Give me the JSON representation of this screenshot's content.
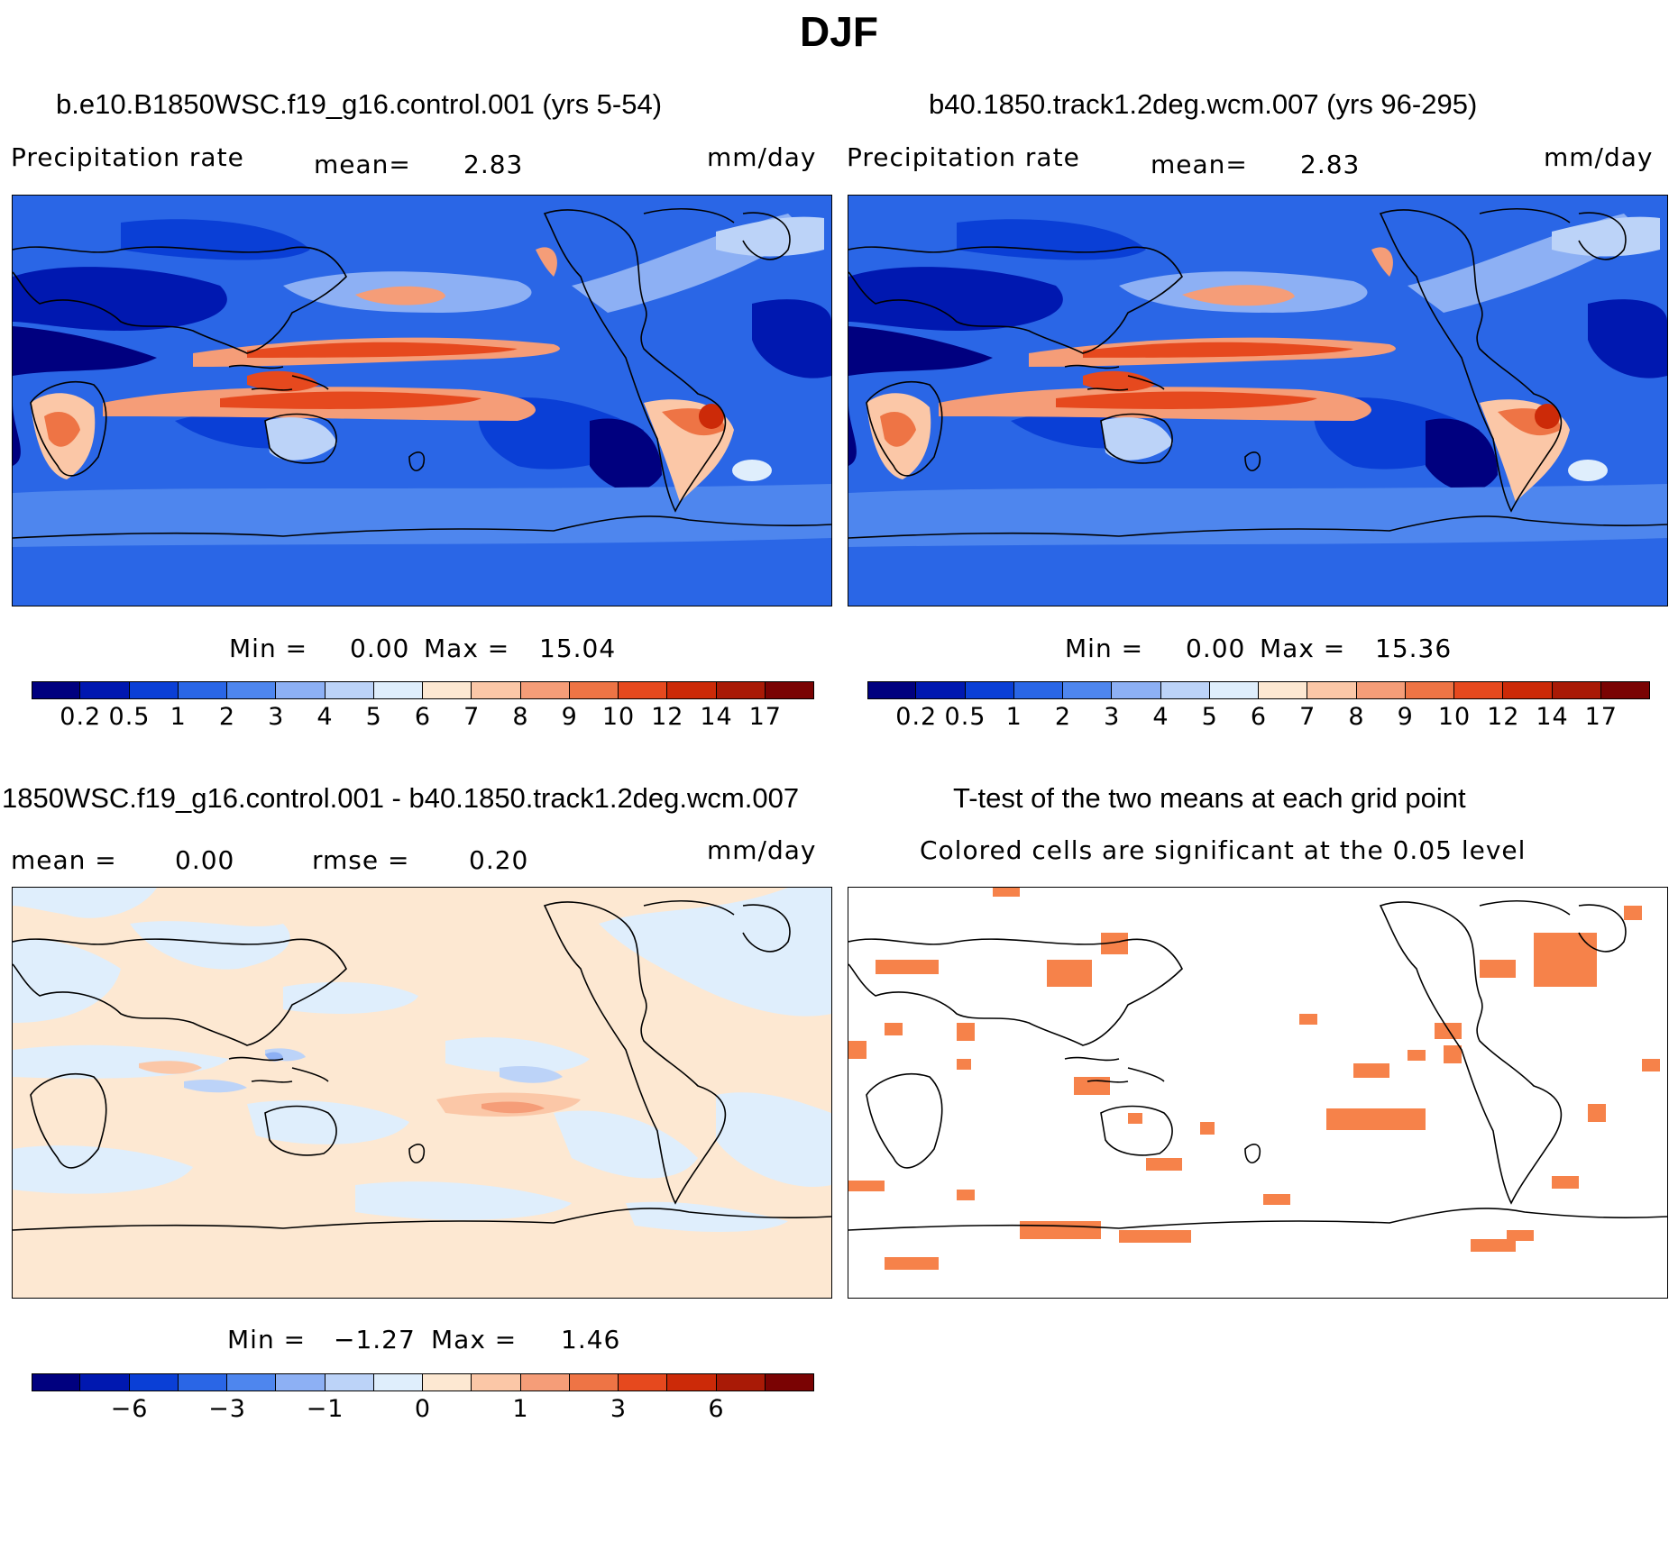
{
  "title": "DJF",
  "colors": {
    "precip": [
      "#00007f",
      "#0018b0",
      "#0a3fd6",
      "#2a66e6",
      "#4e86ee",
      "#8db0f4",
      "#bcd3f8",
      "#dfeefc",
      "#fde8d2",
      "#fbc7a7",
      "#f59d78",
      "#ee7445",
      "#e6491e",
      "#cc2a08",
      "#a91a06",
      "#7a0303"
    ],
    "diff": [
      "#00007f",
      "#0018b0",
      "#0a3fd6",
      "#2a66e6",
      "#4e86ee",
      "#8db0f4",
      "#bcd3f8",
      "#dfeefc",
      "#fde8d2",
      "#fbc7a7",
      "#f59d78",
      "#ee7445",
      "#e6491e",
      "#cc2a08",
      "#a91a06",
      "#7a0303"
    ],
    "land_line": "#000000",
    "sig": "#f6824a"
  },
  "panels": {
    "p1": {
      "title": "b.e10.B1850WSC.f19_g16.control.001 (yrs 5-54)",
      "left_label": "Precipitation  rate",
      "mean_label": "mean=",
      "mean_value": "2.83",
      "units": "mm/day",
      "min_label": "Min  =",
      "min_value": "0.00",
      "max_label": "Max  =",
      "max_value": "15.04",
      "colorbar_ticks": [
        "0.2",
        "0.5",
        "1",
        "2",
        "3",
        "4",
        "5",
        "6",
        "7",
        "8",
        "9",
        "10",
        "12",
        "14",
        "17"
      ]
    },
    "p2": {
      "title": "b40.1850.track1.2deg.wcm.007 (yrs 96-295)",
      "left_label": "Precipitation  rate",
      "mean_label": "mean=",
      "mean_value": "2.83",
      "units": "mm/day",
      "min_label": "Min  =",
      "min_value": "0.00",
      "max_label": "Max  =",
      "max_value": "15.36",
      "colorbar_ticks": [
        "0.2",
        "0.5",
        "1",
        "2",
        "3",
        "4",
        "5",
        "6",
        "7",
        "8",
        "9",
        "10",
        "12",
        "14",
        "17"
      ]
    },
    "p3": {
      "title": "1850WSC.f19_g16.control.001 - b40.1850.track1.2deg.wcm.007",
      "mean_label": "mean  =",
      "mean_value": "0.00",
      "rmse_label": "rmse  =",
      "rmse_value": "0.20",
      "units": "mm/day",
      "min_label": "Min  =",
      "min_value": "−1.27",
      "max_label": "Max  =",
      "max_value": "1.46",
      "colorbar_ticks": [
        "−6",
        "−3",
        "−1",
        "0",
        "1",
        "3",
        "6"
      ]
    },
    "p4": {
      "title": "T-test of the two means at each grid point",
      "subtitle": "Colored cells are significant at the 0.05 level"
    }
  }
}
